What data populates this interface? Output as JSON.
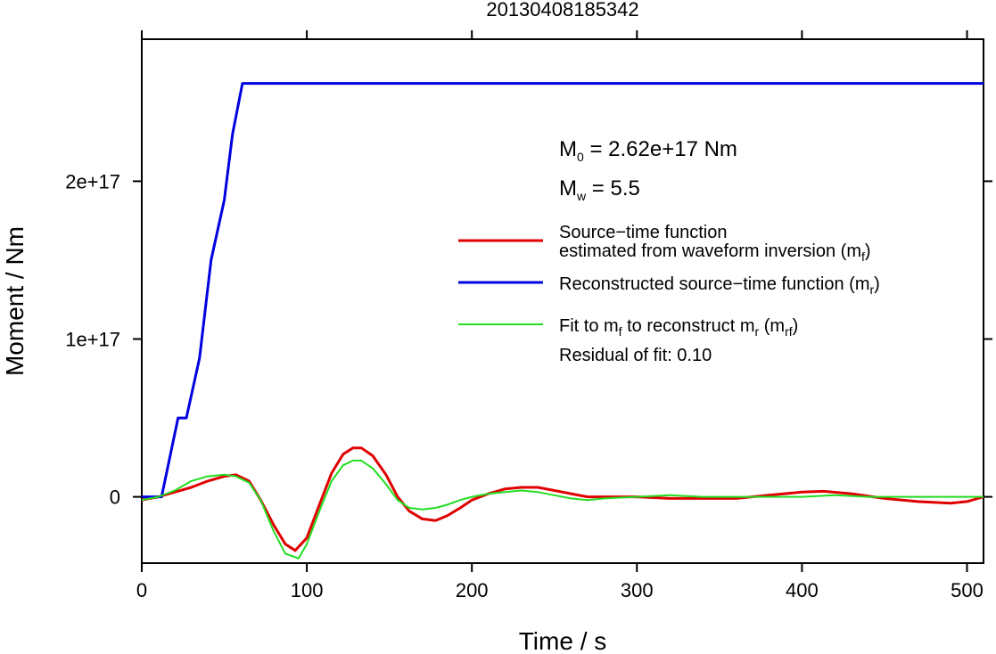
{
  "chart_data": {
    "type": "line",
    "title": "20130408185342",
    "xlabel": "Time / s",
    "ylabel": "Moment / Nm",
    "xlim": [
      0,
      510
    ],
    "ylim": [
      -4.2e+16,
      2.9e+17
    ],
    "x_ticks": [
      {
        "value": 0,
        "label": "0"
      },
      {
        "value": 100,
        "label": "100"
      },
      {
        "value": 200,
        "label": "200"
      },
      {
        "value": 300,
        "label": "300"
      },
      {
        "value": 400,
        "label": "400"
      },
      {
        "value": 500,
        "label": "500"
      }
    ],
    "y_ticks": [
      {
        "value": 0,
        "label": "0"
      },
      {
        "value": 1e+17,
        "label": "1e+17"
      },
      {
        "value": 2e+17,
        "label": "2e+17"
      }
    ],
    "grid": false,
    "legend_position": "right",
    "annotations": {
      "m0": {
        "main": "M",
        "sub": "0",
        "rest": " = 2.62e+17 Nm"
      },
      "mw": {
        "main": "M",
        "sub": "w",
        "rest": " = 5.5"
      },
      "residual": "Residual of fit: 0.10"
    },
    "legend": [
      {
        "series": 0,
        "lines": [
          {
            "text": "Source−time function"
          },
          {
            "text": "estimated from waveform inversion (m",
            "sub": "f",
            "after": ")"
          }
        ]
      },
      {
        "series": 1,
        "lines": [
          {
            "text": "Reconstructed source−time function (m",
            "sub": "r",
            "after": ")"
          }
        ]
      },
      {
        "series": 2,
        "lines": [
          {
            "text": "Fit to m",
            "sub": "f",
            "after": " to reconstruct m",
            "sub2": "r",
            "after2": " (m",
            "sub3": "rf",
            "after3": ")"
          }
        ]
      }
    ],
    "series": [
      {
        "color": "#e00000",
        "x": [
          0,
          10,
          20,
          30,
          40,
          50,
          57,
          65,
          72,
          80,
          87,
          93,
          100,
          108,
          115,
          122,
          128,
          133,
          140,
          148,
          155,
          162,
          170,
          178,
          185,
          193,
          200,
          210,
          220,
          230,
          240,
          250,
          260,
          270,
          280,
          300,
          320,
          340,
          360,
          380,
          400,
          413,
          430,
          450,
          470,
          490,
          500,
          510
        ],
        "y": [
          -2000000000000000.0,
          0,
          3000000000000000.0,
          6000000000000000.0,
          1e+16,
          1.3e+16,
          1.4e+16,
          1e+16,
          -2000000000000000.0,
          -1.8e+16,
          -3e+16,
          -3.4e+16,
          -2.6e+16,
          -4000000000000000.0,
          1.5e+16,
          2.7e+16,
          3.1e+16,
          3.1e+16,
          2.6e+16,
          1.4e+16,
          0,
          -9000000000000000.0,
          -1.4e+16,
          -1.5e+16,
          -1.2e+16,
          -7000000000000000.0,
          -2000000000000000.0,
          2000000000000000.0,
          5000000000000000.0,
          6000000000000000.0,
          6000000000000000.0,
          4000000000000000.0,
          2000000000000000.0,
          0,
          0,
          0,
          -1000000000000000.0,
          -1000000000000000.0,
          -1000000000000000.0,
          1000000000000000.0,
          3000000000000000.0,
          3500000000000000.0,
          2000000000000000.0,
          -1000000000000000.0,
          -3000000000000000.0,
          -4000000000000000.0,
          -3000000000000000.0,
          0
        ]
      },
      {
        "color": "#0000e0",
        "x": [
          0,
          12,
          22,
          27,
          35,
          42,
          50,
          55,
          61,
          510
        ],
        "y": [
          0,
          0,
          5e+16,
          5e+16,
          8.8e+16,
          1.5e+17,
          1.88e+17,
          2.3e+17,
          2.62e+17,
          2.62e+17
        ]
      },
      {
        "color": "#22dd22",
        "x": [
          0,
          10,
          20,
          30,
          40,
          50,
          57,
          65,
          72,
          80,
          87,
          95,
          100,
          108,
          115,
          122,
          128,
          133,
          140,
          148,
          155,
          162,
          170,
          178,
          185,
          193,
          200,
          210,
          220,
          230,
          240,
          250,
          260,
          270,
          280,
          300,
          320,
          340,
          360,
          380,
          400,
          420,
          440,
          460,
          480,
          500,
          510
        ],
        "y": [
          -2000000000000000.0,
          0,
          4000000000000000.0,
          1e+16,
          1.3e+16,
          1.4e+16,
          1.3e+16,
          9000000000000000.0,
          -2000000000000000.0,
          -2.2e+16,
          -3.6e+16,
          -3.9e+16,
          -3e+16,
          -8000000000000000.0,
          1e+16,
          2e+16,
          2.3e+16,
          2.3e+16,
          1.8e+16,
          8000000000000000.0,
          -2000000000000000.0,
          -7000000000000000.0,
          -8000000000000000.0,
          -7000000000000000.0,
          -5000000000000000.0,
          -2000000000000000.0,
          0,
          2000000000000000.0,
          3000000000000000.0,
          4000000000000000.0,
          3000000000000000.0,
          1000000000000000.0,
          -1000000000000000.0,
          -2000000000000000.0,
          -1000000000000000.0,
          0,
          1000000000000000.0,
          0,
          0,
          0,
          0,
          1000000000000000.0,
          0,
          0,
          0,
          0,
          0
        ]
      }
    ]
  }
}
